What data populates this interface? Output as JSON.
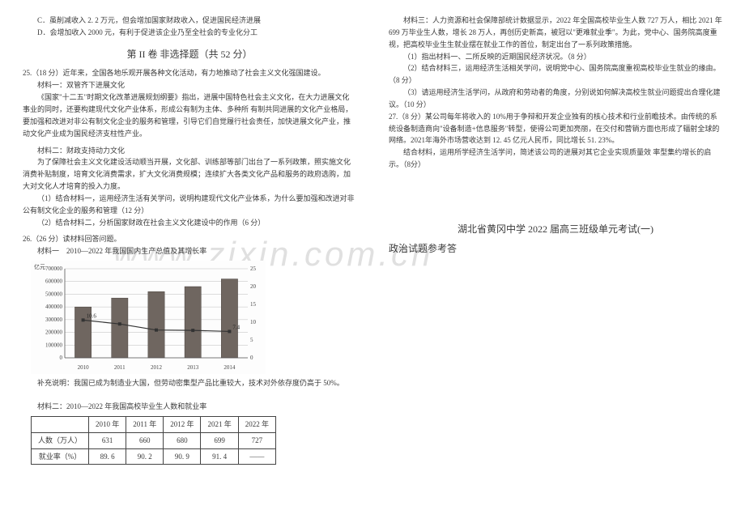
{
  "watermark": "www.zixin.com.cn",
  "left": {
    "optC": "C．虽削减收入 2. 2 万元，但会增加国家财政收入，促进国民经济进展",
    "optD": "D．会增加收入 2000 元，有利于促进该企业乃至全社会的专业化分工",
    "part2_title": "第 II 卷  非选择题（共 52 分）",
    "q25_head": "25.（18 分）近年来，全国各地乐观开展各种文化活动，有力地推动了社会主义文化强国建设。",
    "q25_m1_label": "材料一：双管齐下进展文化",
    "q25_m1_p1": "《国家\"十二五\"时期文化改革进展规划纲要》指出，进展中国特色社会主义文化，在大力进展文化事业的同时，还要构建现代文化产业体系，形成公有制为主体、多种所 有制共同进展的文化产业格局，要加强和改进对非公有制文化企业的服务和管理，引导它们自觉履行社会责任，加快进展文化产业，推动文化产业成为国民经济支柱性产业。",
    "q25_m2_label": "材料二：财政支持动力文化",
    "q25_m2_p1": "为了保障社会主义文化建设活动顺当开展，文化部、训练部等部门出台了一系列政策，照实施文化消费补贴制度，培育文化消费需求，扩大文化消费规模；连续扩大各类文化产品和服务的政府选购，加大对文化人才培育的投入力度。",
    "q25_sub1": "（1）结合材料一，运用经济生活有关学问，说明构建现代文化产业体系，为什么要加强和改进对非公有制文化企业的服务和管理（12 分）",
    "q25_sub2": "（2）结合材料二，分析国家财政在社会主义文化建设中的作用（6 分）",
    "q26_head": "26.（26 分）读材料回答问题。",
    "q26_m1_label": "材料一　2010—2022 年我国国内生产总值及其增长率",
    "chart": {
      "type": "bar+line",
      "y_left_label": "亿元",
      "y_left_ticks": [
        0,
        100000,
        200000,
        300000,
        400000,
        500000,
        600000,
        700000
      ],
      "y_right_ticks": [
        0,
        5,
        10,
        15,
        20,
        25
      ],
      "categories": [
        "2010",
        "2011",
        "2012",
        "2013",
        "2014"
      ],
      "bar_values": [
        400000,
        470000,
        520000,
        560000,
        620000
      ],
      "bar_color": "#6f6660",
      "line_values": [
        10.6,
        9.5,
        7.8,
        7.7,
        7.4
      ],
      "line_labels": [
        "10.6",
        "",
        "",
        "",
        "7.4"
      ],
      "line_color": "#333333",
      "grid_color": "#bdbdbd",
      "background": "#fdfdfd",
      "tick_fontsize": 7
    },
    "chart_note": "补充说明：我国已成为制造业大国，但劳动密集型产品比重较大，技术对外依存度仍高于 50%。",
    "q26_m2_label": "材料二：2010—2022 年我国高校毕业生人数和就业率",
    "table": {
      "columns": [
        "",
        "2010 年",
        "2011 年",
        "2012 年",
        "2021 年",
        "2022 年"
      ],
      "rows": [
        [
          "人数（万人）",
          "631",
          "660",
          "680",
          "699",
          "727"
        ],
        [
          "就业率（%）",
          "89. 6",
          "90. 2",
          "90. 9",
          "91. 4",
          "——"
        ]
      ],
      "border_color": "#444444",
      "cell_padding": "2px 8px"
    }
  },
  "right": {
    "m3_p1": "材料三：人力资源和社会保障部统计数据显示，2022 年全国高校毕业生人数 727 万人，相比 2021 年 699 万毕业生人数，增长 28 万人，再创历史新高，被冠以\"更难就业季\"。为此，党中心、国务院高度重视，把高校毕业生生就业摆在就业工作的首位，制定出台了一系列政策措施。",
    "sub1": "（1）指出材料一、二所反映的近期国民经济状况。（8 分）",
    "sub2": "（2）结合材料三，运用经济生活相关学问，说明党中心、国务院高度重视高校毕业生就业的缘由。（8 分）",
    "sub3": "（3）请运用经济生活学问，从政府和劳动者的角度，分别说如何解决高校生就业问题提出合理化建议。（10 分）",
    "q27_head": "27.（8 分）某公司每年将收入的 10%用于争辩和开发企业独有的核心技术和行业前瞻技术。由传统的系统设备制造商向\"设备制造+信息服务\"转型，使得公司更加亮丽，在交付和营销方面也形成了辐射全球的网络。2021年海外市场营收达到 12. 45 亿元人民币，同比增长 51. 23%。",
    "q27_sub": "结合材料，运用所学经济生活学问，简述该公司的进展对其它企业实现质量效  率型集约增长的启示。（8分）",
    "answer_title1": "湖北省黄冈中学 2022 届高三班级单元考试(一)",
    "answer_title2": "政治试题参考答"
  }
}
